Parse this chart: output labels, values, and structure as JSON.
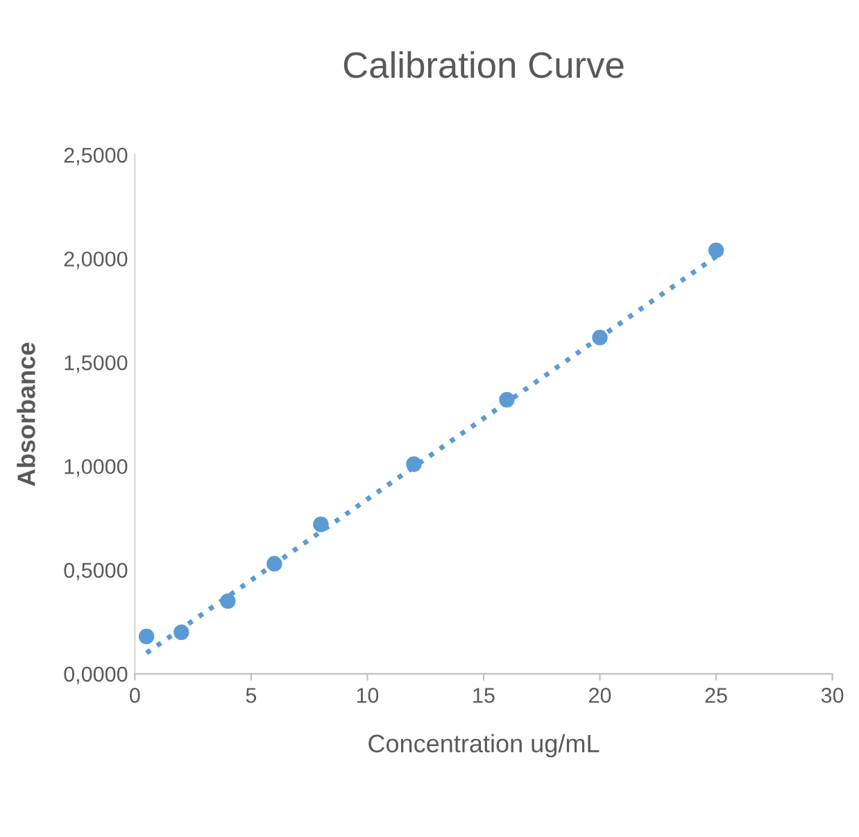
{
  "chart_data": {
    "type": "scatter",
    "title": "Calibration Curve",
    "xlabel": "Concentration ug/mL",
    "ylabel": "Absorbance",
    "x": [
      0.5,
      2,
      4,
      6,
      8,
      12,
      16,
      20,
      25
    ],
    "series": [
      {
        "color": "#5b9bd5",
        "marker": "circle",
        "values": [
          0.18,
          0.2,
          0.35,
          0.53,
          0.72,
          1.01,
          1.32,
          1.62,
          2.04
        ]
      },
      {
        "type": "line",
        "color": "#5b9bd5",
        "marker": "none",
        "line_style": "dotted",
        "x": [
          0.5,
          25
        ],
        "values": [
          0.1,
          2.01
        ]
      }
    ],
    "xlim": [
      0,
      30
    ],
    "xticks": [
      0,
      5,
      10,
      15,
      20,
      25,
      30
    ],
    "ylim": [
      0,
      2.5
    ],
    "yticks": [
      {
        "value": 0,
        "label": "0,0000"
      },
      {
        "value": 0.5,
        "label": "0,5000"
      },
      {
        "value": 1,
        "label": "1,0000"
      },
      {
        "value": 1.5,
        "label": "1,5000"
      },
      {
        "value": 2,
        "label": "2,0000"
      },
      {
        "value": 2.5,
        "label": "2,5000"
      }
    ],
    "grid": false,
    "legend": false
  }
}
